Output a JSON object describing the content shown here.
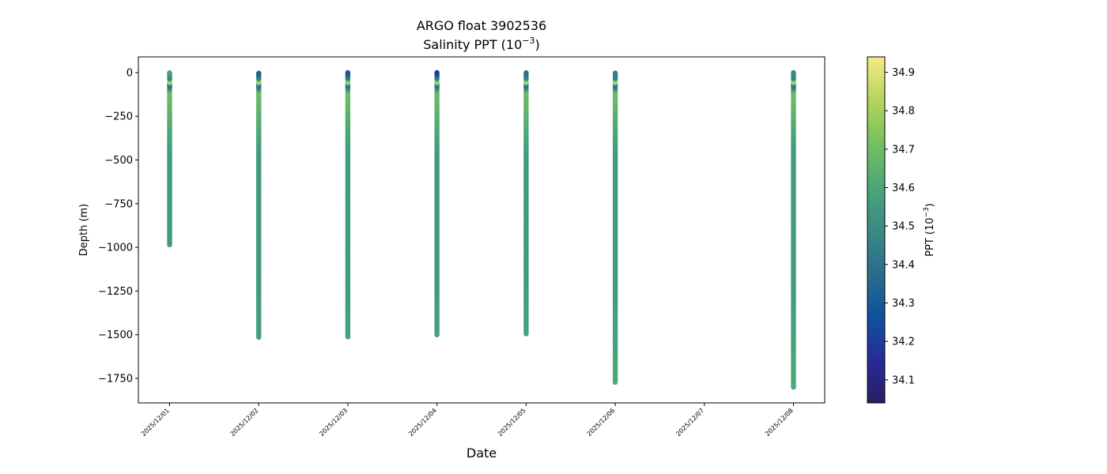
{
  "chart_data": {
    "type": "scatter",
    "title_line1": "ARGO float 3902536",
    "title_line2_text": "Salinity PPT (10",
    "title_line2_exp": "−3",
    "title_line2_close": ")",
    "xlabel": "Date",
    "ylabel": "Depth (m)",
    "colorbar_label_text": "PPT (10",
    "colorbar_label_exp": "−3",
    "colorbar_label_close": ")",
    "colormap": "haline",
    "color_range": [
      34.04,
      34.94
    ],
    "colorbar_ticks": [
      "34.1",
      "34.2",
      "34.3",
      "34.4",
      "34.5",
      "34.6",
      "34.7",
      "34.8",
      "34.9"
    ],
    "xlim_days": [
      -0.35,
      7.35
    ],
    "ylim": [
      -1890,
      90
    ],
    "x_ticks": [
      "2025/12/01",
      "2025/12/02",
      "2025/12/03",
      "2025/12/04",
      "2025/12/05",
      "2025/12/06",
      "2025/12/07",
      "2025/12/08"
    ],
    "y_ticks": [
      "0",
      "−250",
      "−500",
      "−750",
      "−1000",
      "−1250",
      "−1500",
      "−1750"
    ],
    "profiles": [
      {
        "date": "2025/12/01",
        "max_depth": 985,
        "surface_salinity": 34.58
      },
      {
        "date": "2025/12/02",
        "max_depth": 1515,
        "surface_salinity": 34.32
      },
      {
        "date": "2025/12/03",
        "max_depth": 1512,
        "surface_salinity": 34.28
      },
      {
        "date": "2025/12/04",
        "max_depth": 1500,
        "surface_salinity": 34.2
      },
      {
        "date": "2025/12/05",
        "max_depth": 1495,
        "surface_salinity": 34.38
      },
      {
        "date": "2025/12/06",
        "max_depth": 1772,
        "surface_salinity": 34.45
      },
      {
        "date": "2025/12/08",
        "max_depth": 1800,
        "surface_salinity": 34.5
      }
    ]
  }
}
